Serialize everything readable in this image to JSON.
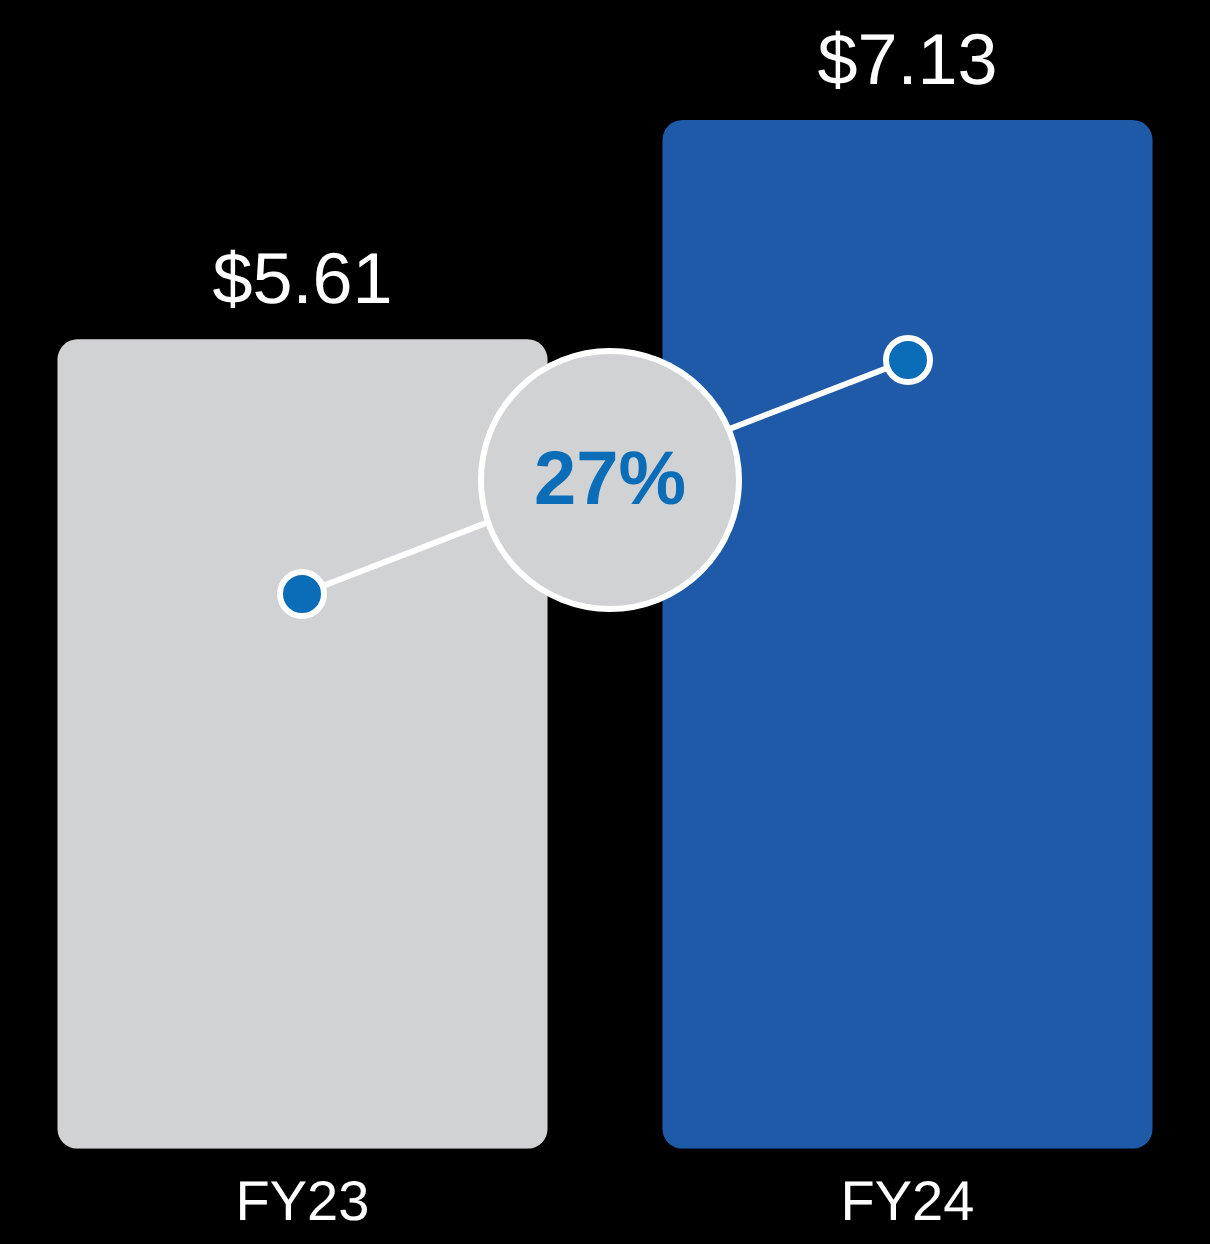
{
  "chart_data": {
    "type": "bar",
    "categories": [
      "FY23",
      "FY24"
    ],
    "values": [
      5.61,
      7.13
    ],
    "colors": [
      "#d1d2d4",
      "#1f5aa8"
    ],
    "value_labels": [
      "$5.61",
      "$7.13"
    ],
    "annotations": [
      "27%"
    ],
    "legend": false
  }
}
